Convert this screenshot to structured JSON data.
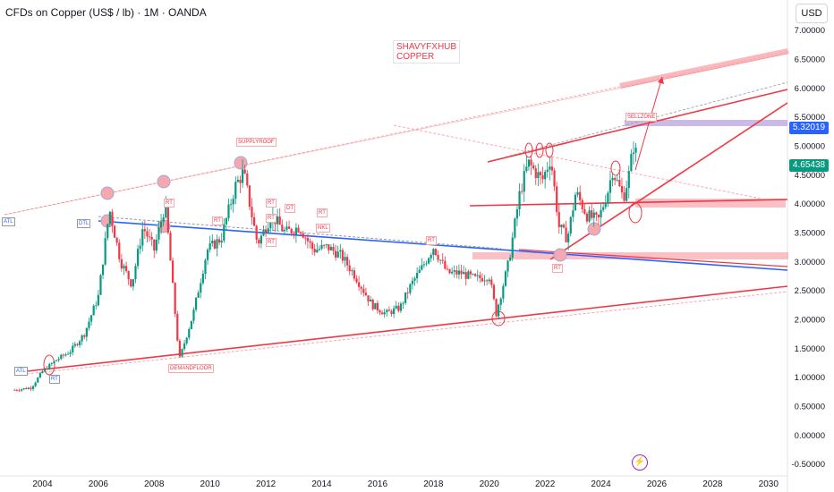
{
  "header": {
    "title": "CFDs on Copper (US$ / lb) · 1M · OANDA",
    "currency": "USD"
  },
  "brand": {
    "line1": "SHAVYFXHUB",
    "line2": "COPPER"
  },
  "price_labels": {
    "current": "4.65438",
    "marked": "5.32019",
    "current_color": "#089981",
    "marked_color": "#2962ff"
  },
  "annotations": [
    "ATL",
    "DTL",
    "ATL",
    "RT",
    "DEMANDFLOOR",
    "SUPPLYROOF",
    "RT",
    "RT",
    "RT",
    "RT",
    "RT",
    "DT",
    "RT",
    "NKL",
    "RT",
    "RT",
    "SELLZONE"
  ],
  "icons": {
    "event": "lightning-icon"
  },
  "chart_data": {
    "type": "candlestick",
    "x_ticks": [
      "2004",
      "2006",
      "2008",
      "2010",
      "2012",
      "2014",
      "2016",
      "2018",
      "2020",
      "2022",
      "2024",
      "2026",
      "2028",
      "2030"
    ],
    "y_ticks": [
      "7.00000",
      "6.50000",
      "6.00000",
      "5.50000",
      "5.00000",
      "4.50000",
      "4.00000",
      "3.50000",
      "3.00000",
      "2.50000",
      "2.00000",
      "1.50000",
      "1.00000",
      "0.50000",
      "0.00000",
      "-0.50000"
    ],
    "ylim": [
      -0.55,
      7.25
    ],
    "xlim": [
      2002.8,
      2031.0
    ],
    "up_color": "#089981",
    "down_color": "#f23645",
    "price_path": [
      [
        2003.0,
        0.78
      ],
      [
        2003.6,
        0.82
      ],
      [
        2004.0,
        1.1
      ],
      [
        2004.5,
        1.3
      ],
      [
        2005.0,
        1.45
      ],
      [
        2005.5,
        1.75
      ],
      [
        2006.0,
        2.4
      ],
      [
        2006.4,
        3.9
      ],
      [
        2006.8,
        3.0
      ],
      [
        2007.2,
        2.6
      ],
      [
        2007.6,
        3.6
      ],
      [
        2008.0,
        3.2
      ],
      [
        2008.4,
        4.0
      ],
      [
        2008.9,
        1.3
      ],
      [
        2009.4,
        2.1
      ],
      [
        2009.9,
        3.2
      ],
      [
        2010.4,
        3.4
      ],
      [
        2010.9,
        4.3
      ],
      [
        2011.2,
        4.55
      ],
      [
        2011.7,
        3.3
      ],
      [
        2012.2,
        3.8
      ],
      [
        2012.7,
        3.5
      ],
      [
        2013.2,
        3.6
      ],
      [
        2013.7,
        3.2
      ],
      [
        2014.2,
        3.25
      ],
      [
        2014.7,
        3.1
      ],
      [
        2015.2,
        2.75
      ],
      [
        2015.8,
        2.25
      ],
      [
        2016.3,
        2.1
      ],
      [
        2016.8,
        2.2
      ],
      [
        2017.2,
        2.6
      ],
      [
        2017.6,
        2.9
      ],
      [
        2018.0,
        3.25
      ],
      [
        2018.5,
        2.8
      ],
      [
        2019.0,
        2.8
      ],
      [
        2019.5,
        2.7
      ],
      [
        2020.0,
        2.75
      ],
      [
        2020.25,
        2.1
      ],
      [
        2020.7,
        3.0
      ],
      [
        2021.1,
        4.2
      ],
      [
        2021.4,
        4.7
      ],
      [
        2021.9,
        4.4
      ],
      [
        2022.2,
        4.8
      ],
      [
        2022.5,
        3.6
      ],
      [
        2022.8,
        3.4
      ],
      [
        2023.1,
        4.2
      ],
      [
        2023.5,
        3.8
      ],
      [
        2023.9,
        3.7
      ],
      [
        2024.3,
        4.3
      ],
      [
        2024.4,
        4.6
      ],
      [
        2024.8,
        4.1
      ],
      [
        2025.0,
        4.5
      ],
      [
        2025.2,
        5.1
      ],
      [
        2025.3,
        4.65
      ]
    ]
  }
}
